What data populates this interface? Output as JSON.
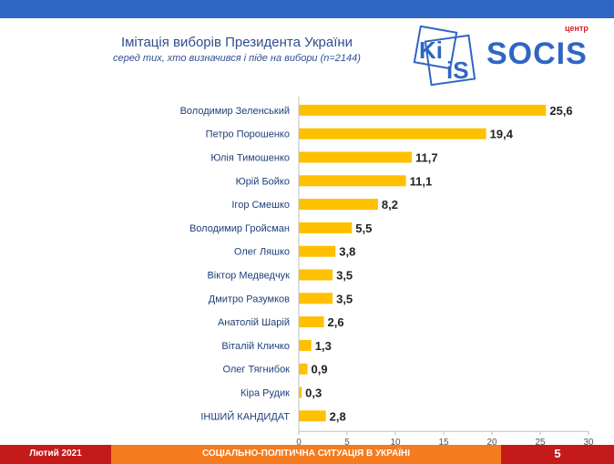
{
  "header": {
    "title": "Імітація виборів Президента України",
    "subtitle": "серед тих, хто визначився і піде на вибори (n=2144)"
  },
  "logos": {
    "kiis_text": "KI IS",
    "socis_tag": "центр",
    "socis_word": "SOCIS"
  },
  "colors": {
    "bar": "#FFC000",
    "top_bar": "#2F66C4",
    "footer_red": "#C51A1A",
    "footer_orange": "#F47B1E"
  },
  "chart_data": {
    "type": "bar",
    "orientation": "horizontal",
    "categories": [
      "Володимир Зеленський",
      "Петро Порошенко",
      "Юлія Тимошенко",
      "Юрій Бойко",
      "Ігор Смешко",
      "Володимир Гройсман",
      "Олег Ляшко",
      "Віктор Медведчук",
      "Дмитро Разумков",
      "Анатолій Шарій",
      "Віталій Кличко",
      "Олег Тягнибок",
      "Кіра Рудик",
      "ІНШИЙ КАНДИДАТ"
    ],
    "values": [
      25.6,
      19.4,
      11.7,
      11.1,
      8.2,
      5.5,
      3.8,
      3.5,
      3.5,
      2.6,
      1.3,
      0.9,
      0.3,
      2.8
    ],
    "value_labels": [
      "25,6",
      "19,4",
      "11,7",
      "11,1",
      "8,2",
      "5,5",
      "3,8",
      "3,5",
      "3,5",
      "2,6",
      "1,3",
      "0,9",
      "0,3",
      "2,8"
    ],
    "xlim": [
      0,
      30
    ],
    "xticks": [
      "0",
      "5",
      "10",
      "15",
      "20",
      "25",
      "30"
    ],
    "grid": false,
    "legend": "none"
  },
  "footer": {
    "date": "Лютий 2021",
    "section": "СОЦІАЛЬНО-ПОЛІТИЧНА СИТУАЦІЯ В УКРАЇНІ",
    "page": "5"
  }
}
